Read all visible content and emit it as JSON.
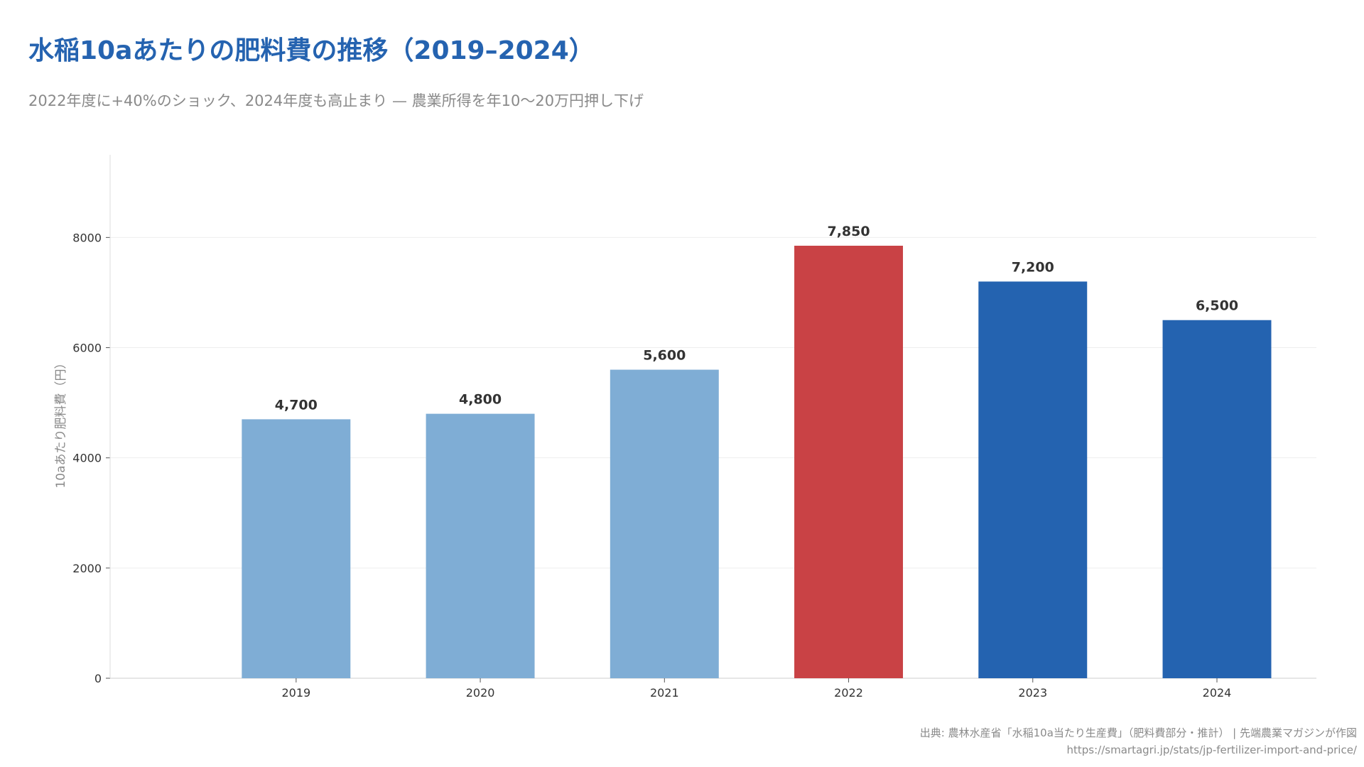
{
  "header": {
    "title": "水稲10aあたりの肥料費の推移（2019–2024）",
    "subtitle": "2022年度に+40%のショック、2024年度も高止まり — 農業所得を年10〜20万円押し下げ"
  },
  "footer": {
    "source": "出典: 農林水産省「水稲10a当たり生産費」（肥料費部分・推計） | 先端農業マガジンが作図",
    "url": "https://smartagri.jp/stats/jp-fertilizer-import-and-price/"
  },
  "chart_data": {
    "type": "bar",
    "title": "水稲10aあたりの肥料費の推移（2019–2024）",
    "subtitle": "2022年度に+40%のショック、2024年度も高止まり — 農業所得を年10〜20万円押し下げ",
    "xlabel": "",
    "ylabel": "10aあたり肥料費（円）",
    "categories": [
      "2019",
      "2020",
      "2021",
      "2022",
      "2023",
      "2024"
    ],
    "values": [
      4700,
      4800,
      5600,
      7850,
      7200,
      6500
    ],
    "value_labels": [
      "4,700",
      "4,800",
      "5,600",
      "7,850",
      "7,200",
      "6,500"
    ],
    "bar_colors": [
      "#7fadd5",
      "#7fadd5",
      "#7fadd5",
      "#c94245",
      "#2463b0",
      "#2463b0"
    ],
    "ylim": [
      0,
      9500
    ],
    "yticks": [
      0,
      2000,
      4000,
      6000,
      8000
    ],
    "grid": "horizontal",
    "legend": "none"
  },
  "colors": {
    "title": "#2563b0",
    "muted_text": "#8a8a8a",
    "value_label": "#333333",
    "tick_label": "#333333",
    "gridline": "#eeeeee",
    "axis_line": "#dddddd"
  }
}
